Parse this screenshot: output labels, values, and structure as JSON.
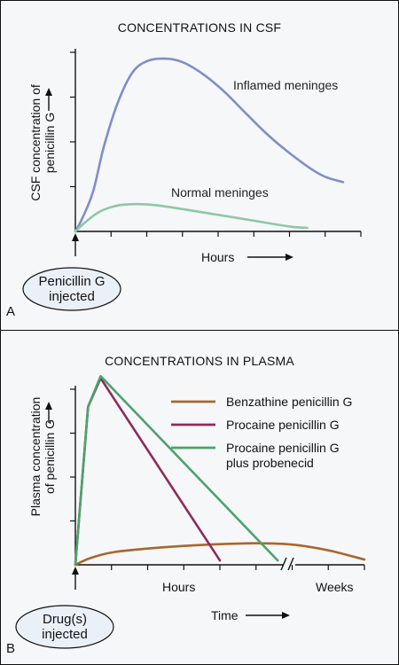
{
  "colors": {
    "inflamed": "#7f8ec7",
    "normal": "#8fc7a3",
    "benzathine": "#a8672c",
    "procaine": "#8b2c5c",
    "probenecid": "#4ba36b",
    "ellipse_fill": "#eaf0f8"
  },
  "chart_data": [
    {
      "type": "line",
      "panel_label": "A",
      "title": "CONCENTRATIONS IN CSF",
      "ylabel_lines": [
        "CSF concentration of",
        "penicillin G"
      ],
      "xlabel": "Hours",
      "ylim": [
        0,
        4
      ],
      "xlim": [
        0,
        8
      ],
      "ticks_y": [
        1,
        2,
        3,
        4
      ],
      "ticks_x": [
        1,
        2,
        3,
        4,
        5,
        6,
        7,
        8
      ],
      "grid": false,
      "event_label_lines": [
        "Penicillin G",
        "injected"
      ],
      "series": [
        {
          "name": "Inflamed meninges",
          "color_key": "inflamed",
          "x": [
            0,
            0.2,
            0.5,
            0.8,
            1.2,
            1.6,
            2.0,
            2.5,
            3.0,
            3.6,
            4.2,
            4.8,
            5.4,
            6.0,
            6.6,
            7.0,
            7.5
          ],
          "y": [
            0,
            0.3,
            0.9,
            1.9,
            2.9,
            3.55,
            3.8,
            3.86,
            3.78,
            3.5,
            3.1,
            2.62,
            2.15,
            1.75,
            1.4,
            1.22,
            1.1
          ]
        },
        {
          "name": "Normal meninges",
          "color_key": "normal",
          "x": [
            0,
            0.3,
            0.7,
            1.2,
            1.7,
            2.2,
            3.0,
            4.0,
            5.0,
            6.0,
            6.5
          ],
          "y": [
            0,
            0.22,
            0.45,
            0.58,
            0.61,
            0.59,
            0.5,
            0.37,
            0.24,
            0.11,
            0.08
          ]
        }
      ]
    },
    {
      "type": "line",
      "panel_label": "B",
      "title": "CONCENTRATIONS IN PLASMA",
      "ylabel_lines": [
        "Plasma concentration",
        "of penicillin G"
      ],
      "xlabel": "Time",
      "x_segments": [
        "Hours",
        "Weeks"
      ],
      "ylim": [
        0,
        4
      ],
      "xlim": [
        0,
        8
      ],
      "ticks_y": [
        1,
        2,
        3,
        4
      ],
      "ticks_x": [
        1,
        2,
        3,
        4,
        5,
        6,
        7,
        8
      ],
      "axis_break": true,
      "grid": false,
      "event_label_lines": [
        "Drug(s)",
        "injected"
      ],
      "series": [
        {
          "name": "Benzathine penicillin G",
          "color_key": "benzathine",
          "x": [
            0,
            0.4,
            1.0,
            2.0,
            3.0,
            4.0,
            5.0,
            6.0,
            7.0,
            8.0
          ],
          "y": [
            0,
            0.15,
            0.28,
            0.37,
            0.43,
            0.47,
            0.49,
            0.46,
            0.33,
            0.12
          ]
        },
        {
          "name": "Procaine penicillin G",
          "color_key": "procaine",
          "x": [
            0,
            0.35,
            0.7,
            4.0
          ],
          "y": [
            0,
            3.6,
            4.25,
            0.1
          ]
        },
        {
          "name": "Procaine penicillin G\nplus probenecid",
          "color_key": "probenecid",
          "legend_lines": [
            "Procaine penicillin G",
            "plus probenecid"
          ],
          "x": [
            0,
            0.35,
            0.7,
            5.6
          ],
          "y": [
            0,
            3.6,
            4.3,
            0.1
          ]
        }
      ]
    }
  ]
}
